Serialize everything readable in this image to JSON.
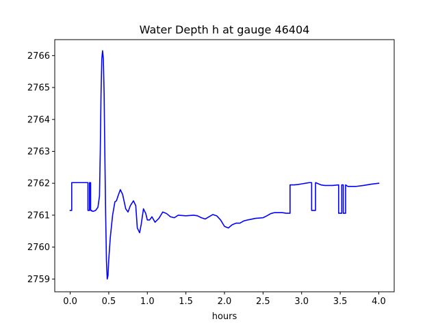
{
  "chart_data": {
    "type": "line",
    "title": "Water Depth h at gauge 46404",
    "xlabel": "hours",
    "ylabel": "",
    "xlim": [
      -0.2,
      4.2
    ],
    "ylim": [
      2758.6,
      2766.5
    ],
    "xticks": [
      0.0,
      0.5,
      1.0,
      1.5,
      2.0,
      2.5,
      3.0,
      3.5,
      4.0
    ],
    "xtick_labels": [
      "0.0",
      "0.5",
      "1.0",
      "1.5",
      "2.0",
      "2.5",
      "3.0",
      "3.5",
      "4.0"
    ],
    "yticks": [
      2759,
      2760,
      2761,
      2762,
      2763,
      2764,
      2765,
      2766
    ],
    "ytick_labels": [
      "2759",
      "2760",
      "2761",
      "2762",
      "2763",
      "2764",
      "2765",
      "2766"
    ],
    "grid": false,
    "series": [
      {
        "color": "#0000ff",
        "x": [
          0.0,
          0.02,
          0.02,
          0.05,
          0.1,
          0.15,
          0.2,
          0.23,
          0.23,
          0.25,
          0.25,
          0.265,
          0.265,
          0.28,
          0.28,
          0.3,
          0.33,
          0.36,
          0.38,
          0.39,
          0.4,
          0.41,
          0.42,
          0.43,
          0.44,
          0.45,
          0.46,
          0.47,
          0.48,
          0.49,
          0.5,
          0.52,
          0.55,
          0.58,
          0.6,
          0.62,
          0.65,
          0.68,
          0.72,
          0.75,
          0.78,
          0.82,
          0.85,
          0.87,
          0.9,
          0.92,
          0.95,
          0.98,
          1.0,
          1.03,
          1.06,
          1.1,
          1.15,
          1.2,
          1.25,
          1.3,
          1.35,
          1.4,
          1.5,
          1.6,
          1.65,
          1.7,
          1.75,
          1.8,
          1.85,
          1.9,
          1.95,
          2.0,
          2.05,
          2.1,
          2.15,
          2.2,
          2.25,
          2.3,
          2.4,
          2.5,
          2.55,
          2.6,
          2.65,
          2.7,
          2.75,
          2.8,
          2.85,
          2.85,
          2.9,
          2.95,
          3.0,
          3.05,
          3.1,
          3.13,
          3.13,
          3.18,
          3.18,
          3.25,
          3.3,
          3.4,
          3.48,
          3.48,
          3.52,
          3.52,
          3.54,
          3.54,
          3.57,
          3.57,
          3.6,
          3.7,
          3.8,
          3.9,
          4.0
        ],
        "y": [
          2761.15,
          2761.15,
          2762.02,
          2762.02,
          2762.02,
          2762.02,
          2762.02,
          2762.02,
          2761.15,
          2761.15,
          2762.02,
          2762.02,
          2761.15,
          2761.15,
          2761.13,
          2761.12,
          2761.15,
          2761.25,
          2761.6,
          2763.0,
          2764.8,
          2765.9,
          2766.15,
          2765.9,
          2764.8,
          2762.8,
          2761.0,
          2759.6,
          2759.0,
          2759.1,
          2759.6,
          2760.3,
          2761.0,
          2761.42,
          2761.45,
          2761.6,
          2761.8,
          2761.65,
          2761.2,
          2761.1,
          2761.3,
          2761.45,
          2761.3,
          2760.6,
          2760.45,
          2760.7,
          2761.2,
          2761.05,
          2760.85,
          2760.85,
          2760.95,
          2760.78,
          2760.9,
          2761.1,
          2761.05,
          2760.95,
          2760.92,
          2761.0,
          2760.98,
          2761.0,
          2760.98,
          2760.92,
          2760.88,
          2760.95,
          2761.02,
          2760.98,
          2760.85,
          2760.65,
          2760.6,
          2760.7,
          2760.75,
          2760.75,
          2760.82,
          2760.85,
          2760.9,
          2760.92,
          2760.98,
          2761.05,
          2761.08,
          2761.08,
          2761.08,
          2761.06,
          2761.06,
          2761.95,
          2761.95,
          2761.96,
          2761.98,
          2762.0,
          2762.02,
          2762.02,
          2761.15,
          2761.15,
          2762.02,
          2761.95,
          2761.93,
          2761.93,
          2761.95,
          2761.06,
          2761.06,
          2761.95,
          2761.95,
          2761.06,
          2761.06,
          2761.95,
          2761.9,
          2761.9,
          2761.93,
          2761.97,
          2762.0
        ]
      }
    ]
  }
}
